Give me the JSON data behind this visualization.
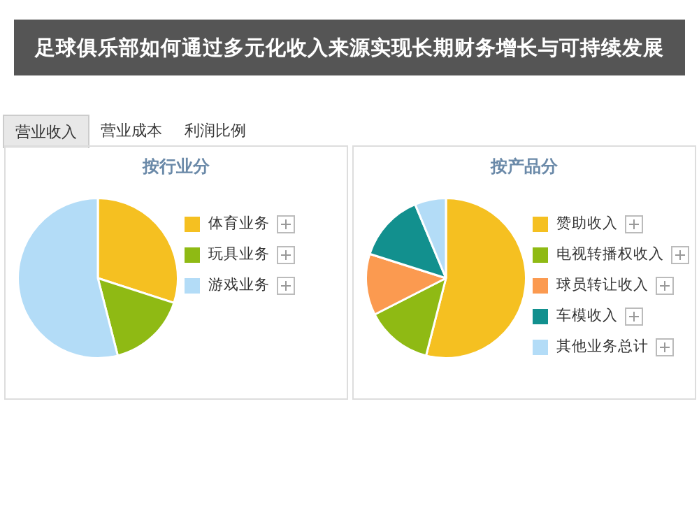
{
  "chart_data": [
    {
      "type": "other",
      "title": "足球俱乐部如何通过多元化收入来源实现长期财务增长与可持续发展",
      "annotations": [
        "营业收入",
        "营业成本",
        "利润比例"
      ]
    },
    {
      "type": "pie",
      "title": "按行业分",
      "categories": [
        "体育业务",
        "玩具业务",
        "游戏业务"
      ],
      "values": [
        30,
        16,
        54
      ],
      "colors": [
        "#f5c021",
        "#8fba14",
        "#b3dcf7"
      ],
      "legend": "right"
    },
    {
      "type": "pie",
      "title": "按产品分",
      "categories": [
        "赞助收入",
        "电视转播权收入",
        "球员转让收入",
        "车模收入",
        "其他业务总计"
      ],
      "values": [
        54,
        13.5,
        12.4,
        13.8,
        6.3
      ],
      "colors": [
        "#f5c021",
        "#8fba14",
        "#fb9a50",
        "#12908e",
        "#b3dcf7"
      ],
      "legend": "right"
    }
  ]
}
